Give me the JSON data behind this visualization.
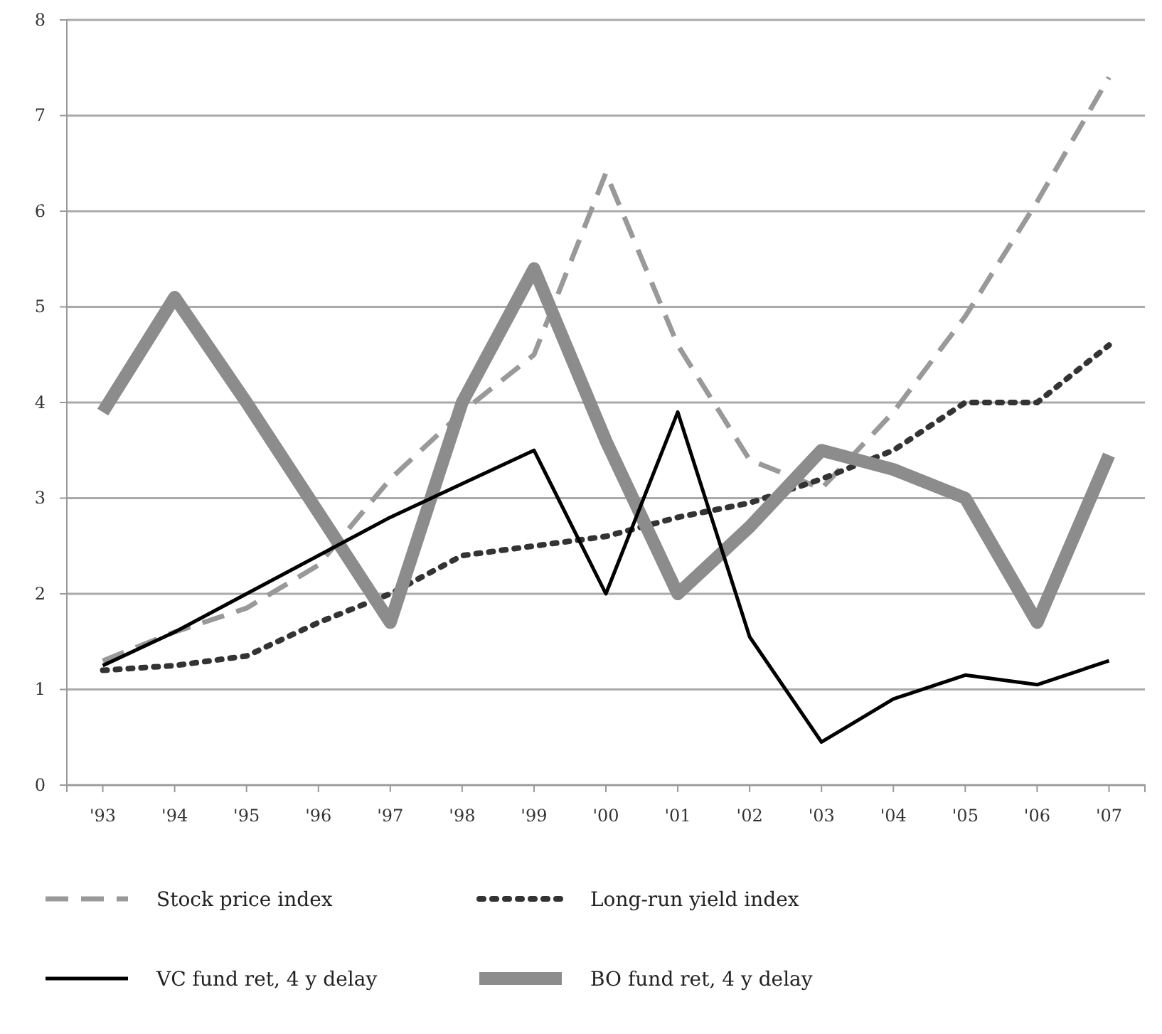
{
  "chart_data": {
    "type": "line",
    "categories": [
      "'93",
      "'94",
      "'95",
      "'96",
      "'97",
      "'98",
      "'99",
      "'00",
      "'01",
      "'02",
      "'03",
      "'04",
      "'05",
      "'06",
      "'07"
    ],
    "ylim": [
      0,
      8
    ],
    "yticks": [
      0,
      1,
      2,
      3,
      4,
      5,
      6,
      7,
      8
    ],
    "grid": "y",
    "legend": "bottom",
    "marker": "none",
    "series": [
      {
        "name": "Stock price index",
        "color": "#999999",
        "line_style": "dashed",
        "values": [
          1.3,
          1.6,
          1.85,
          2.3,
          3.2,
          3.9,
          4.5,
          6.4,
          4.6,
          3.4,
          3.1,
          3.9,
          4.9,
          6.1,
          7.4
        ]
      },
      {
        "name": "Long-run yield index",
        "color": "#333333",
        "line_style": "dotted",
        "values": [
          1.2,
          1.25,
          1.35,
          1.7,
          2.0,
          2.4,
          2.5,
          2.6,
          2.8,
          2.95,
          3.2,
          3.5,
          4.0,
          4.0,
          4.6
        ]
      },
      {
        "name": "VC fund ret, 4 y delay",
        "color": "#000000",
        "line_style": "solid",
        "values": [
          1.25,
          1.6,
          2.0,
          2.4,
          2.8,
          3.15,
          3.5,
          2.0,
          3.9,
          1.55,
          0.45,
          0.9,
          1.15,
          1.05,
          1.3
        ]
      },
      {
        "name": "BO fund ret, 4 y delay",
        "color": "#8c8c8c",
        "line_style": "solid",
        "values": [
          3.9,
          5.1,
          4.0,
          2.85,
          1.7,
          4.0,
          5.4,
          3.6,
          2.0,
          2.7,
          3.5,
          3.3,
          3.0,
          1.7,
          3.45
        ]
      }
    ]
  }
}
